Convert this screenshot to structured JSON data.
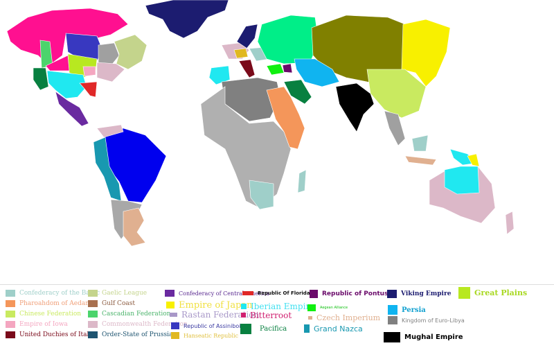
{
  "legend": [
    {
      "label": "Confederacy of the Baltic",
      "color": "#9fcfc9",
      "text_color": "#9fcfc9"
    },
    {
      "label": "Pharoahdom of Aedan",
      "color": "#f4965a",
      "text_color": "#f0a07a"
    },
    {
      "label": "Chinese Federation",
      "color": "#c9ea60",
      "text_color": "#c9ea60"
    },
    {
      "label": "Empire of Iowa",
      "color": "#f4a6c0",
      "text_color": "#f4a6c0"
    },
    {
      "label": "United Duchies of Italy",
      "color": "#7a0a1a",
      "text_color": "#7a0a1a"
    },
    {
      "label": "Gaelic League",
      "color": "#c4d48c",
      "text_color": "#c4d48c"
    },
    {
      "label": "Gulf Coast",
      "color": "#a8704f",
      "text_color": "#8b5a3f"
    },
    {
      "label": "Cascadian Federation",
      "color": "#4cd46c",
      "text_color": "#4cb46c"
    },
    {
      "label": "Commonwealth Federation",
      "color": "#dcb8c8",
      "text_color": "#dcb8c8"
    },
    {
      "label": "Order-State of Prussia",
      "color": "#1e5470",
      "text_color": "#1e5470"
    },
    {
      "label": "Confederacy of Central America",
      "color": "#6a2aa0",
      "text_color": "#5a2a90"
    },
    {
      "label": "Empire of Japan",
      "color": "#f8f000",
      "text_color": "#f0e040"
    },
    {
      "label": "Rastan Federation",
      "color": "#a898c8",
      "text_color": "#a898c8"
    },
    {
      "label": "Republic of Assiniboia",
      "color": "#3838c0",
      "text_color": "#3838a0"
    },
    {
      "label": "Hanseatic Republic",
      "color": "#e0b820",
      "text_color": "#e0c040"
    },
    {
      "label": "Republic Of Florida",
      "color": "#e02828",
      "text_color": "#111111"
    },
    {
      "label": "Iberian Empire",
      "color": "#20e8f0",
      "text_color": "#40e0f0"
    },
    {
      "label": "Bitterroot",
      "color": "#d02070",
      "text_color": "#d02070"
    },
    {
      "label": "Pacifica",
      "color": "#088040",
      "text_color": "#088040"
    },
    {
      "label": "Republic of Pontus",
      "color": "#6a0a6a",
      "text_color": "#6a0a6a"
    },
    {
      "label": "Aegean Alliance",
      "color": "#10f010",
      "text_color": "#10c010"
    },
    {
      "label": "Czech Imperium",
      "color": "#e0b090",
      "text_color": "#e0b090"
    },
    {
      "label": "Grand Nazca",
      "color": "#1898b0",
      "text_color": "#1898b0"
    },
    {
      "label": "Viking Empire",
      "color": "#1c1c70",
      "text_color": "#1c1c70"
    },
    {
      "label": "Persia",
      "color": "#10b4f0",
      "text_color": "#10a0d0"
    },
    {
      "label": "Kingdom of Euro-Libya",
      "color": "#808080",
      "text_color": "#808080"
    },
    {
      "label": "Mughal Empire",
      "color": "#000000",
      "text_color": "#000000"
    },
    {
      "label": "Great Plains",
      "color": "#b8e820",
      "text_color": "#a8d820"
    }
  ]
}
